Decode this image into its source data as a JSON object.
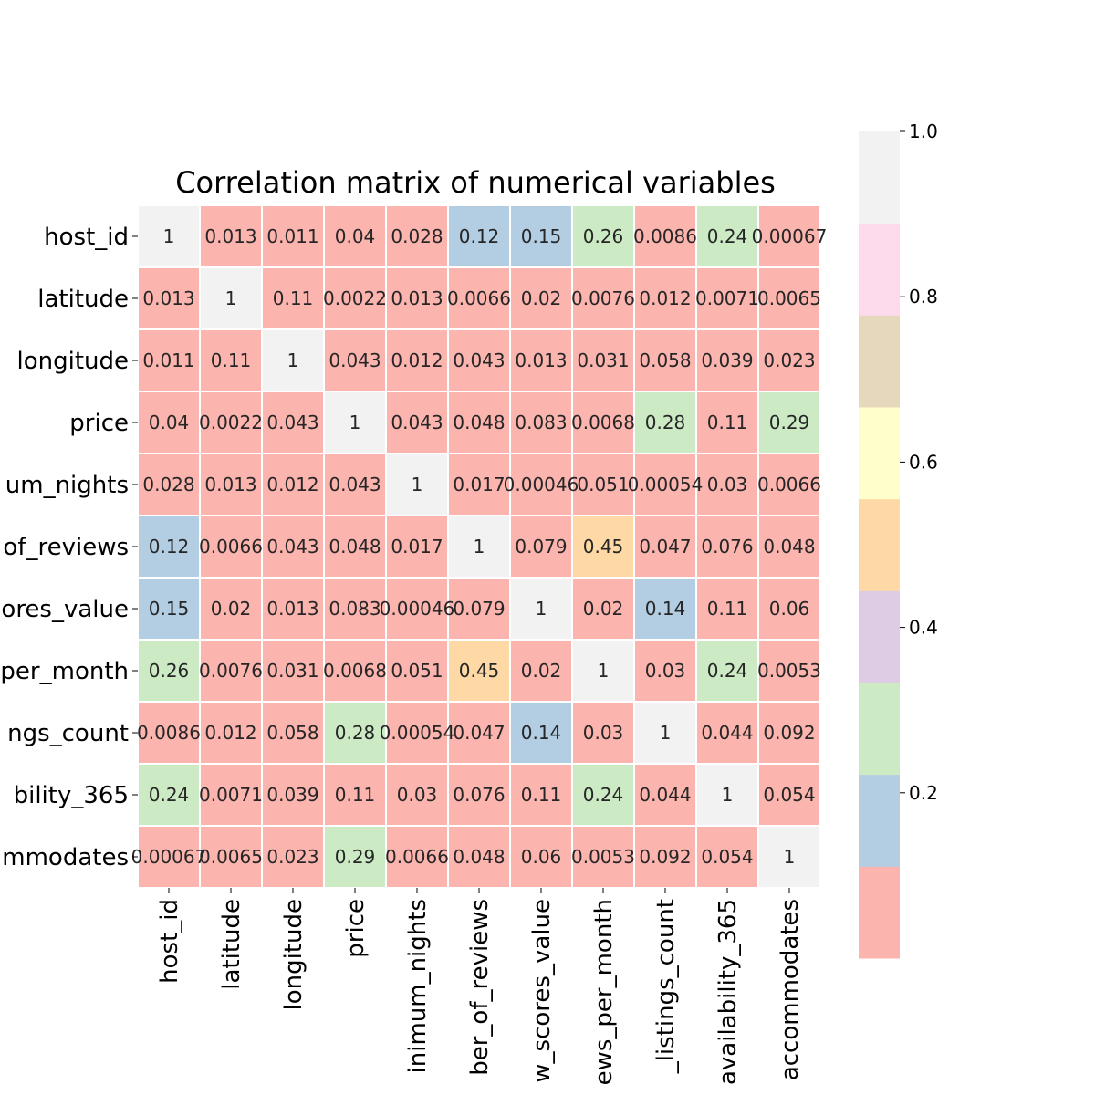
{
  "chart_data": {
    "type": "heatmap",
    "title": "Correlation matrix of numerical variables",
    "row_labels": [
      "host_id",
      "latitude",
      "longitude",
      "price",
      "um_nights",
      "of_reviews",
      "ores_value",
      "per_month",
      "ngs_count",
      "bility_365",
      "mmodates"
    ],
    "col_labels": [
      "host_id",
      "latitude",
      "longitude",
      "price",
      "inimum_nights",
      "ber_of_reviews",
      "w_scores_value",
      "ews_per_month",
      "_listings_count",
      "availability_365",
      "accommodates"
    ],
    "values": [
      [
        1,
        0.013,
        0.011,
        0.04,
        0.028,
        0.12,
        0.15,
        0.26,
        0.0086,
        0.24,
        0.00067
      ],
      [
        0.013,
        1,
        0.11,
        0.0022,
        0.013,
        0.0066,
        0.02,
        0.0076,
        0.012,
        0.0071,
        0.0065
      ],
      [
        0.011,
        0.11,
        1,
        0.043,
        0.012,
        0.043,
        0.013,
        0.031,
        0.058,
        0.039,
        0.023
      ],
      [
        0.04,
        0.0022,
        0.043,
        1,
        0.043,
        0.048,
        0.083,
        0.0068,
        0.28,
        0.11,
        0.29
      ],
      [
        0.028,
        0.013,
        0.012,
        0.043,
        1,
        0.017,
        0.00046,
        0.051,
        0.00054,
        0.03,
        0.0066
      ],
      [
        0.12,
        0.0066,
        0.043,
        0.048,
        0.017,
        1,
        0.079,
        0.45,
        0.047,
        0.076,
        0.048
      ],
      [
        0.15,
        0.02,
        0.013,
        0.083,
        0.00046,
        0.079,
        1,
        0.02,
        0.14,
        0.11,
        0.06
      ],
      [
        0.26,
        0.0076,
        0.031,
        0.0068,
        0.051,
        0.45,
        0.02,
        1,
        0.03,
        0.24,
        0.0053
      ],
      [
        0.0086,
        0.012,
        0.058,
        0.28,
        0.00054,
        0.047,
        0.14,
        0.03,
        1,
        0.044,
        0.092
      ],
      [
        0.24,
        0.0071,
        0.039,
        0.11,
        0.03,
        0.076,
        0.11,
        0.24,
        0.044,
        1,
        0.054
      ],
      [
        0.00067,
        0.0065,
        0.023,
        0.29,
        0.0066,
        0.048,
        0.06,
        0.0053,
        0.092,
        0.054,
        1
      ]
    ],
    "annotations": [
      [
        "1",
        "0.013",
        "0.011",
        "0.04",
        "0.028",
        "0.12",
        "0.15",
        "0.26",
        "0.0086",
        "0.24",
        "0.00067"
      ],
      [
        "0.013",
        "1",
        "0.11",
        "0.0022",
        "0.013",
        "0.0066",
        "0.02",
        "0.0076",
        "0.012",
        "0.0071",
        "0.0065"
      ],
      [
        "0.011",
        "0.11",
        "1",
        "0.043",
        "0.012",
        "0.043",
        "0.013",
        "0.031",
        "0.058",
        "0.039",
        "0.023"
      ],
      [
        "0.04",
        "0.0022",
        "0.043",
        "1",
        "0.043",
        "0.048",
        "0.083",
        "0.0068",
        "0.28",
        "0.11",
        "0.29"
      ],
      [
        "0.028",
        "0.013",
        "0.012",
        "0.043",
        "1",
        "0.017",
        "0.00046",
        "0.051",
        "0.00054",
        "0.03",
        "0.0066"
      ],
      [
        "0.12",
        "0.0066",
        "0.043",
        "0.048",
        "0.017",
        "1",
        "0.079",
        "0.45",
        "0.047",
        "0.076",
        "0.048"
      ],
      [
        "0.15",
        "0.02",
        "0.013",
        "0.083",
        "0.00046",
        "0.079",
        "1",
        "0.02",
        "0.14",
        "0.11",
        "0.06"
      ],
      [
        "0.26",
        "0.0076",
        "0.031",
        "0.0068",
        "0.051",
        "0.45",
        "0.02",
        "1",
        "0.03",
        "0.24",
        "0.0053"
      ],
      [
        "0.0086",
        "0.012",
        "0.058",
        "0.28",
        "0.00054",
        "0.047",
        "0.14",
        "0.03",
        "1",
        "0.044",
        "0.092"
      ],
      [
        "0.24",
        "0.0071",
        "0.039",
        "0.11",
        "0.03",
        "0.076",
        "0.11",
        "0.24",
        "0.044",
        "1",
        "0.054"
      ],
      [
        "0.00067",
        "0.0065",
        "0.023",
        "0.29",
        "0.0066",
        "0.048",
        "0.06",
        "0.0053",
        "0.092",
        "0.054",
        "1"
      ]
    ],
    "colorbar": {
      "min": 0,
      "max": 1.0,
      "ticks": [
        0.2,
        0.4,
        0.6,
        0.8,
        1.0
      ],
      "tick_labels": [
        "0.2",
        "0.4",
        "0.6",
        "0.8",
        "1.0"
      ],
      "colors": [
        "#fbb4ae",
        "#b3cde3",
        "#ccebc5",
        "#decbe4",
        "#fed9a6",
        "#ffffcc",
        "#e5d8bd",
        "#fddaec",
        "#f2f2f2"
      ]
    },
    "colormap": "Pastel1",
    "grid": false
  }
}
